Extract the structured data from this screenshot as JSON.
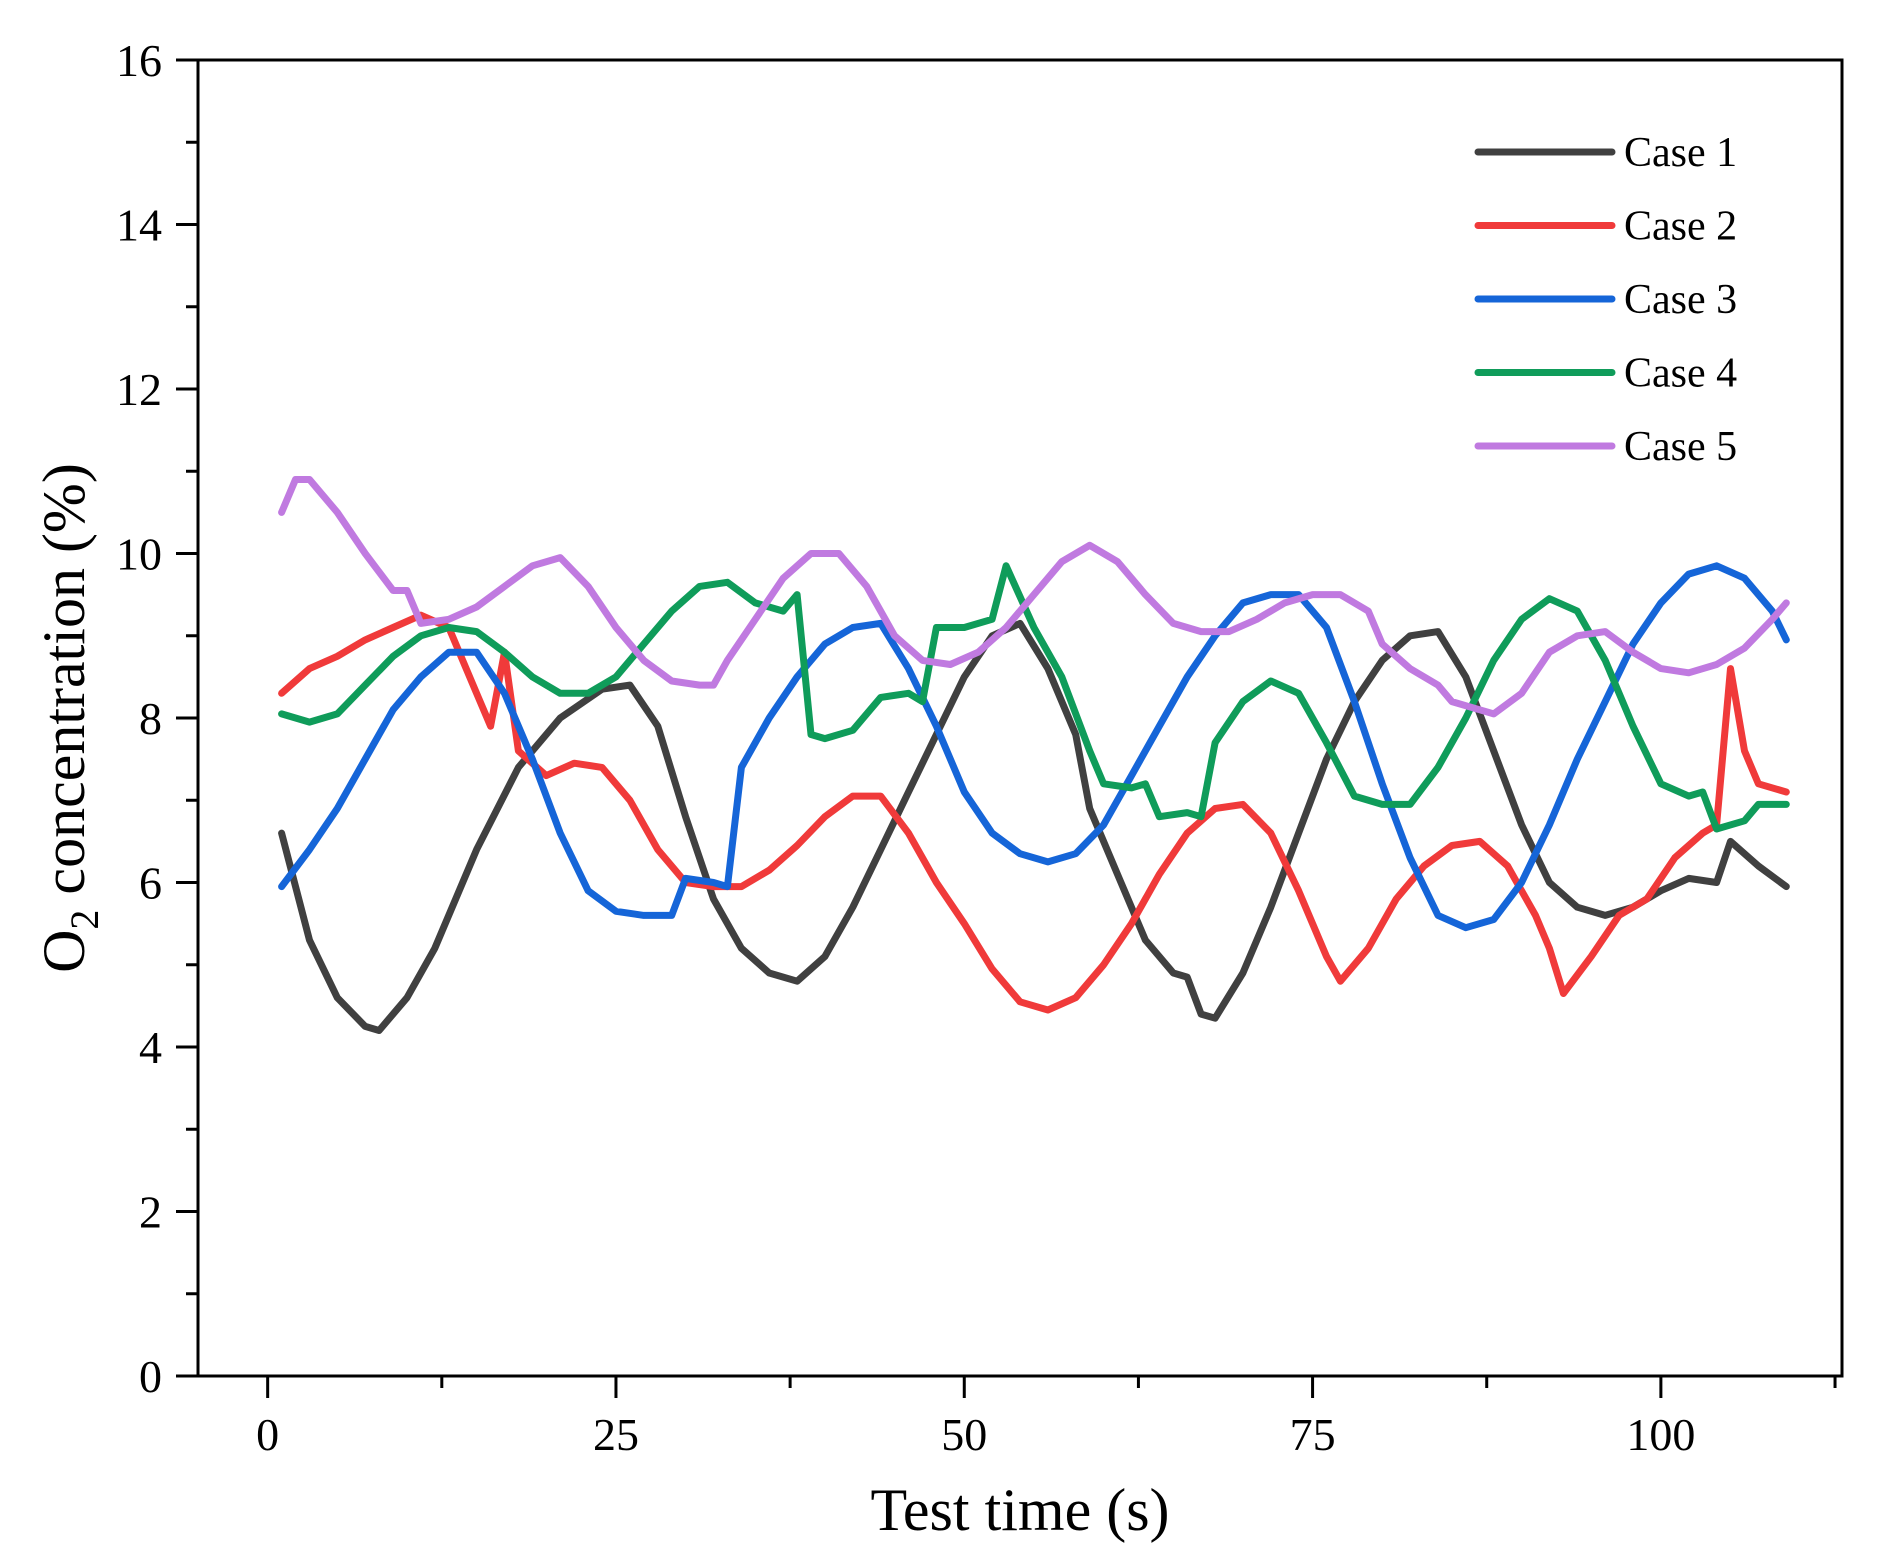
{
  "chart_data": {
    "type": "line",
    "title": "",
    "xlabel": "Test time (s)",
    "ylabel_main": "O",
    "ylabel_sub": "2",
    "ylabel_rest": " concentration (%)",
    "xlim": [
      -5,
      113
    ],
    "ylim": [
      0,
      16
    ],
    "xticks": [
      0,
      25,
      50,
      75,
      100
    ],
    "xtick_labels": [
      "0",
      "25",
      "50",
      "75",
      "100"
    ],
    "yticks": [
      0,
      2,
      4,
      6,
      8,
      10,
      12,
      14,
      16
    ],
    "ytick_labels": [
      "0",
      "2",
      "4",
      "6",
      "8",
      "10",
      "12",
      "14",
      "16"
    ],
    "legend_position": "top-right",
    "series": [
      {
        "name": "Case 1",
        "color": "#404040",
        "points": [
          [
            1,
            6.6
          ],
          [
            3,
            5.3
          ],
          [
            5,
            4.6
          ],
          [
            7,
            4.25
          ],
          [
            8,
            4.2
          ],
          [
            10,
            4.6
          ],
          [
            12,
            5.2
          ],
          [
            15,
            6.4
          ],
          [
            18,
            7.4
          ],
          [
            21,
            8.0
          ],
          [
            24,
            8.35
          ],
          [
            26,
            8.4
          ],
          [
            28,
            7.9
          ],
          [
            30,
            6.8
          ],
          [
            32,
            5.8
          ],
          [
            34,
            5.2
          ],
          [
            36,
            4.9
          ],
          [
            38,
            4.8
          ],
          [
            40,
            5.1
          ],
          [
            42,
            5.7
          ],
          [
            44,
            6.4
          ],
          [
            46,
            7.1
          ],
          [
            48,
            7.8
          ],
          [
            50,
            8.5
          ],
          [
            52,
            9.0
          ],
          [
            54,
            9.15
          ],
          [
            56,
            8.6
          ],
          [
            58,
            7.8
          ],
          [
            59,
            6.9
          ],
          [
            61,
            6.1
          ],
          [
            63,
            5.3
          ],
          [
            65,
            4.9
          ],
          [
            66,
            4.85
          ],
          [
            67,
            4.4
          ],
          [
            68,
            4.35
          ],
          [
            70,
            4.9
          ],
          [
            72,
            5.7
          ],
          [
            74,
            6.6
          ],
          [
            76,
            7.5
          ],
          [
            78,
            8.2
          ],
          [
            80,
            8.7
          ],
          [
            82,
            9.0
          ],
          [
            84,
            9.05
          ],
          [
            86,
            8.5
          ],
          [
            88,
            7.6
          ],
          [
            90,
            6.7
          ],
          [
            92,
            6.0
          ],
          [
            94,
            5.7
          ],
          [
            96,
            5.6
          ],
          [
            98,
            5.7
          ],
          [
            100,
            5.9
          ],
          [
            102,
            6.05
          ],
          [
            104,
            6.0
          ],
          [
            105,
            6.5
          ],
          [
            107,
            6.2
          ],
          [
            109,
            5.95
          ]
        ]
      },
      {
        "name": "Case 2",
        "color": "#f03a3a",
        "points": [
          [
            1,
            8.3
          ],
          [
            3,
            8.6
          ],
          [
            5,
            8.75
          ],
          [
            7,
            8.95
          ],
          [
            9,
            9.1
          ],
          [
            11,
            9.25
          ],
          [
            13,
            9.1
          ],
          [
            15,
            8.3
          ],
          [
            16,
            7.9
          ],
          [
            17,
            8.8
          ],
          [
            18,
            7.6
          ],
          [
            20,
            7.3
          ],
          [
            22,
            7.45
          ],
          [
            24,
            7.4
          ],
          [
            26,
            7.0
          ],
          [
            28,
            6.4
          ],
          [
            30,
            6.0
          ],
          [
            32,
            5.95
          ],
          [
            34,
            5.95
          ],
          [
            36,
            6.15
          ],
          [
            38,
            6.45
          ],
          [
            40,
            6.8
          ],
          [
            42,
            7.05
          ],
          [
            44,
            7.05
          ],
          [
            46,
            6.6
          ],
          [
            48,
            6.0
          ],
          [
            50,
            5.5
          ],
          [
            52,
            4.95
          ],
          [
            54,
            4.55
          ],
          [
            56,
            4.45
          ],
          [
            58,
            4.6
          ],
          [
            60,
            5.0
          ],
          [
            62,
            5.5
          ],
          [
            64,
            6.1
          ],
          [
            66,
            6.6
          ],
          [
            68,
            6.9
          ],
          [
            70,
            6.95
          ],
          [
            72,
            6.6
          ],
          [
            74,
            5.9
          ],
          [
            76,
            5.1
          ],
          [
            77,
            4.8
          ],
          [
            79,
            5.2
          ],
          [
            81,
            5.8
          ],
          [
            83,
            6.2
          ],
          [
            85,
            6.45
          ],
          [
            87,
            6.5
          ],
          [
            89,
            6.2
          ],
          [
            91,
            5.6
          ],
          [
            92,
            5.2
          ],
          [
            93,
            4.65
          ],
          [
            95,
            5.1
          ],
          [
            97,
            5.6
          ],
          [
            99,
            5.8
          ],
          [
            101,
            6.3
          ],
          [
            103,
            6.6
          ],
          [
            104,
            6.7
          ],
          [
            105,
            8.6
          ],
          [
            106,
            7.6
          ],
          [
            107,
            7.2
          ],
          [
            109,
            7.1
          ]
        ]
      },
      {
        "name": "Case 3",
        "color": "#1565d8",
        "points": [
          [
            1,
            5.95
          ],
          [
            3,
            6.4
          ],
          [
            5,
            6.9
          ],
          [
            7,
            7.5
          ],
          [
            9,
            8.1
          ],
          [
            11,
            8.5
          ],
          [
            13,
            8.8
          ],
          [
            15,
            8.8
          ],
          [
            17,
            8.3
          ],
          [
            19,
            7.5
          ],
          [
            21,
            6.6
          ],
          [
            23,
            5.9
          ],
          [
            25,
            5.65
          ],
          [
            27,
            5.6
          ],
          [
            29,
            5.6
          ],
          [
            30,
            6.05
          ],
          [
            32,
            6.0
          ],
          [
            33,
            5.95
          ],
          [
            34,
            7.4
          ],
          [
            36,
            8.0
          ],
          [
            38,
            8.5
          ],
          [
            40,
            8.9
          ],
          [
            42,
            9.1
          ],
          [
            44,
            9.15
          ],
          [
            46,
            8.6
          ],
          [
            48,
            7.9
          ],
          [
            50,
            7.1
          ],
          [
            52,
            6.6
          ],
          [
            54,
            6.35
          ],
          [
            56,
            6.25
          ],
          [
            58,
            6.35
          ],
          [
            60,
            6.7
          ],
          [
            62,
            7.3
          ],
          [
            64,
            7.9
          ],
          [
            66,
            8.5
          ],
          [
            68,
            9.0
          ],
          [
            70,
            9.4
          ],
          [
            72,
            9.5
          ],
          [
            74,
            9.5
          ],
          [
            76,
            9.1
          ],
          [
            78,
            8.2
          ],
          [
            80,
            7.2
          ],
          [
            82,
            6.3
          ],
          [
            84,
            5.6
          ],
          [
            86,
            5.45
          ],
          [
            88,
            5.55
          ],
          [
            90,
            6.0
          ],
          [
            92,
            6.7
          ],
          [
            94,
            7.5
          ],
          [
            96,
            8.2
          ],
          [
            98,
            8.9
          ],
          [
            100,
            9.4
          ],
          [
            102,
            9.75
          ],
          [
            104,
            9.85
          ],
          [
            106,
            9.7
          ],
          [
            108,
            9.3
          ],
          [
            109,
            8.95
          ]
        ]
      },
      {
        "name": "Case 4",
        "color": "#0f9c5a",
        "points": [
          [
            1,
            8.05
          ],
          [
            3,
            7.95
          ],
          [
            5,
            8.05
          ],
          [
            7,
            8.4
          ],
          [
            9,
            8.75
          ],
          [
            11,
            9.0
          ],
          [
            13,
            9.1
          ],
          [
            15,
            9.05
          ],
          [
            17,
            8.8
          ],
          [
            19,
            8.5
          ],
          [
            21,
            8.3
          ],
          [
            23,
            8.3
          ],
          [
            25,
            8.5
          ],
          [
            27,
            8.9
          ],
          [
            29,
            9.3
          ],
          [
            31,
            9.6
          ],
          [
            33,
            9.65
          ],
          [
            35,
            9.4
          ],
          [
            37,
            9.3
          ],
          [
            38,
            9.5
          ],
          [
            39,
            7.8
          ],
          [
            40,
            7.75
          ],
          [
            42,
            7.85
          ],
          [
            44,
            8.25
          ],
          [
            46,
            8.3
          ],
          [
            47,
            8.2
          ],
          [
            48,
            9.1
          ],
          [
            50,
            9.1
          ],
          [
            52,
            9.2
          ],
          [
            53,
            9.85
          ],
          [
            55,
            9.1
          ],
          [
            57,
            8.5
          ],
          [
            59,
            7.6
          ],
          [
            60,
            7.2
          ],
          [
            62,
            7.15
          ],
          [
            63,
            7.2
          ],
          [
            64,
            6.8
          ],
          [
            66,
            6.85
          ],
          [
            67,
            6.8
          ],
          [
            68,
            7.7
          ],
          [
            70,
            8.2
          ],
          [
            72,
            8.45
          ],
          [
            74,
            8.3
          ],
          [
            76,
            7.7
          ],
          [
            78,
            7.05
          ],
          [
            80,
            6.95
          ],
          [
            82,
            6.95
          ],
          [
            84,
            7.4
          ],
          [
            86,
            8.0
          ],
          [
            88,
            8.7
          ],
          [
            90,
            9.2
          ],
          [
            92,
            9.45
          ],
          [
            94,
            9.3
          ],
          [
            96,
            8.7
          ],
          [
            98,
            7.9
          ],
          [
            100,
            7.2
          ],
          [
            102,
            7.05
          ],
          [
            103,
            7.1
          ],
          [
            104,
            6.65
          ],
          [
            106,
            6.75
          ],
          [
            107,
            6.95
          ],
          [
            109,
            6.95
          ]
        ]
      },
      {
        "name": "Case 5",
        "color": "#c07ae0",
        "points": [
          [
            1,
            10.5
          ],
          [
            2,
            10.9
          ],
          [
            3,
            10.9
          ],
          [
            5,
            10.5
          ],
          [
            7,
            10.0
          ],
          [
            9,
            9.55
          ],
          [
            10,
            9.55
          ],
          [
            11,
            9.15
          ],
          [
            13,
            9.2
          ],
          [
            15,
            9.35
          ],
          [
            17,
            9.6
          ],
          [
            19,
            9.85
          ],
          [
            21,
            9.95
          ],
          [
            23,
            9.6
          ],
          [
            25,
            9.1
          ],
          [
            27,
            8.7
          ],
          [
            29,
            8.45
          ],
          [
            31,
            8.4
          ],
          [
            32,
            8.4
          ],
          [
            33,
            8.7
          ],
          [
            35,
            9.2
          ],
          [
            37,
            9.7
          ],
          [
            39,
            10.0
          ],
          [
            41,
            10.0
          ],
          [
            43,
            9.6
          ],
          [
            45,
            9.0
          ],
          [
            47,
            8.7
          ],
          [
            49,
            8.65
          ],
          [
            51,
            8.8
          ],
          [
            53,
            9.1
          ],
          [
            55,
            9.5
          ],
          [
            57,
            9.9
          ],
          [
            59,
            10.1
          ],
          [
            61,
            9.9
          ],
          [
            63,
            9.5
          ],
          [
            65,
            9.15
          ],
          [
            67,
            9.05
          ],
          [
            69,
            9.05
          ],
          [
            71,
            9.2
          ],
          [
            73,
            9.4
          ],
          [
            75,
            9.5
          ],
          [
            77,
            9.5
          ],
          [
            79,
            9.3
          ],
          [
            80,
            8.9
          ],
          [
            82,
            8.6
          ],
          [
            84,
            8.4
          ],
          [
            85,
            8.2
          ],
          [
            87,
            8.1
          ],
          [
            88,
            8.05
          ],
          [
            90,
            8.3
          ],
          [
            92,
            8.8
          ],
          [
            94,
            9.0
          ],
          [
            96,
            9.05
          ],
          [
            98,
            8.8
          ],
          [
            100,
            8.6
          ],
          [
            102,
            8.55
          ],
          [
            104,
            8.65
          ],
          [
            106,
            8.85
          ],
          [
            108,
            9.2
          ],
          [
            109,
            9.4
          ]
        ]
      }
    ]
  }
}
